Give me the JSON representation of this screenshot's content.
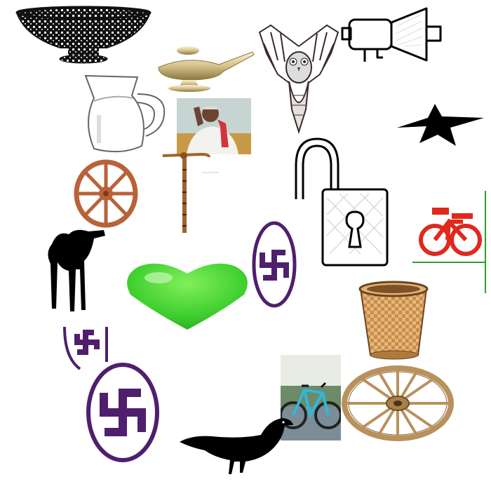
{
  "canvas": {
    "background": "#ffffff"
  },
  "symbols": [
    {
      "name": "basket-bowl-icon"
    },
    {
      "name": "oil-lamp-icon"
    },
    {
      "name": "owl-icon"
    },
    {
      "name": "loudspeaker-icon"
    },
    {
      "name": "glass-jug-icon"
    },
    {
      "name": "farmer-photo"
    },
    {
      "name": "star-icon"
    },
    {
      "name": "cart-wheel-icon"
    },
    {
      "name": "walking-stick-icon"
    },
    {
      "name": "padlock-open-icon"
    },
    {
      "name": "bicycle-red-icon"
    },
    {
      "name": "camel-icon"
    },
    {
      "name": "heart-icon"
    },
    {
      "name": "swastika-oval-icon"
    },
    {
      "name": "swastika-partial-icon"
    },
    {
      "name": "woven-basket-icon"
    },
    {
      "name": "bicycle-photo"
    },
    {
      "name": "wooden-wheel-icon"
    },
    {
      "name": "swastika-oval-large-icon"
    },
    {
      "name": "bird-silhouette-icon"
    }
  ],
  "colors": {
    "purple": "#4f1f6d",
    "green": "#3fcf2f",
    "red": "#e0281d",
    "wheel": "#b9623a",
    "wood": "#b8915c",
    "stick": "#a0622c",
    "black": "#000000"
  }
}
